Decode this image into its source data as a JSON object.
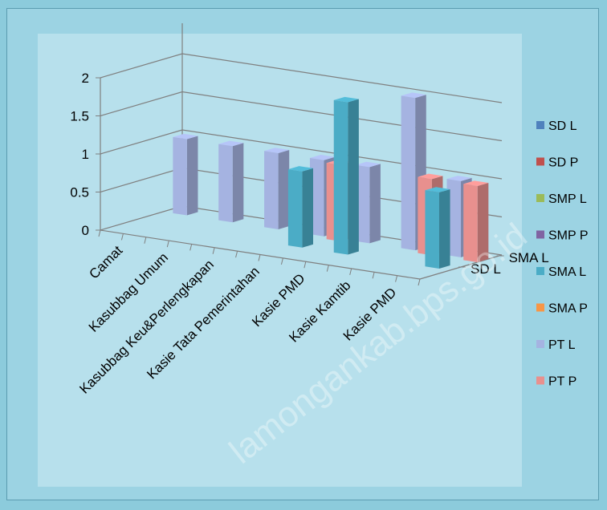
{
  "chart_data": {
    "type": "bar",
    "categories": [
      "Camat",
      "Kasubbag Umum",
      "Kasubbag Keu&Perlengkapan",
      "Kasie Tata Pemerintahan",
      "Kasie PMD",
      "Kasie Kamtib",
      "Kasie PMD"
    ],
    "depth_labels": [
      "SMA L",
      "SD L"
    ],
    "y_ticks": [
      "0",
      "0.5",
      "1",
      "1.5",
      "2"
    ],
    "ylim": [
      0,
      2
    ],
    "legend_position": "right",
    "series": [
      {
        "name": "SD L",
        "color": "#4f81bd",
        "values": [
          0,
          0,
          0,
          0,
          0,
          0,
          0
        ]
      },
      {
        "name": "SD P",
        "color": "#c0504d",
        "values": [
          0,
          0,
          0,
          0,
          0,
          0,
          0
        ]
      },
      {
        "name": "SMP L",
        "color": "#9bbb59",
        "values": [
          0,
          0,
          0,
          0,
          0,
          0,
          0
        ]
      },
      {
        "name": "SMP P",
        "color": "#8064a2",
        "values": [
          0,
          0,
          0,
          0,
          0,
          0,
          0
        ]
      },
      {
        "name": "SMA L",
        "color": "#4bacc6",
        "values": [
          0,
          0,
          0,
          1,
          2,
          0,
          1
        ]
      },
      {
        "name": "SMA P",
        "color": "#f79646",
        "values": [
          0,
          0,
          0,
          0,
          0,
          0,
          0
        ]
      },
      {
        "name": "PT L",
        "color": "#a5b3e1",
        "values": [
          1,
          1,
          1,
          1,
          1,
          2,
          1
        ]
      },
      {
        "name": "PT P",
        "color": "#e8908e",
        "values": [
          0,
          0,
          0,
          1,
          0,
          1,
          1
        ]
      }
    ],
    "watermark": "lamongankab.bps.go.id"
  }
}
